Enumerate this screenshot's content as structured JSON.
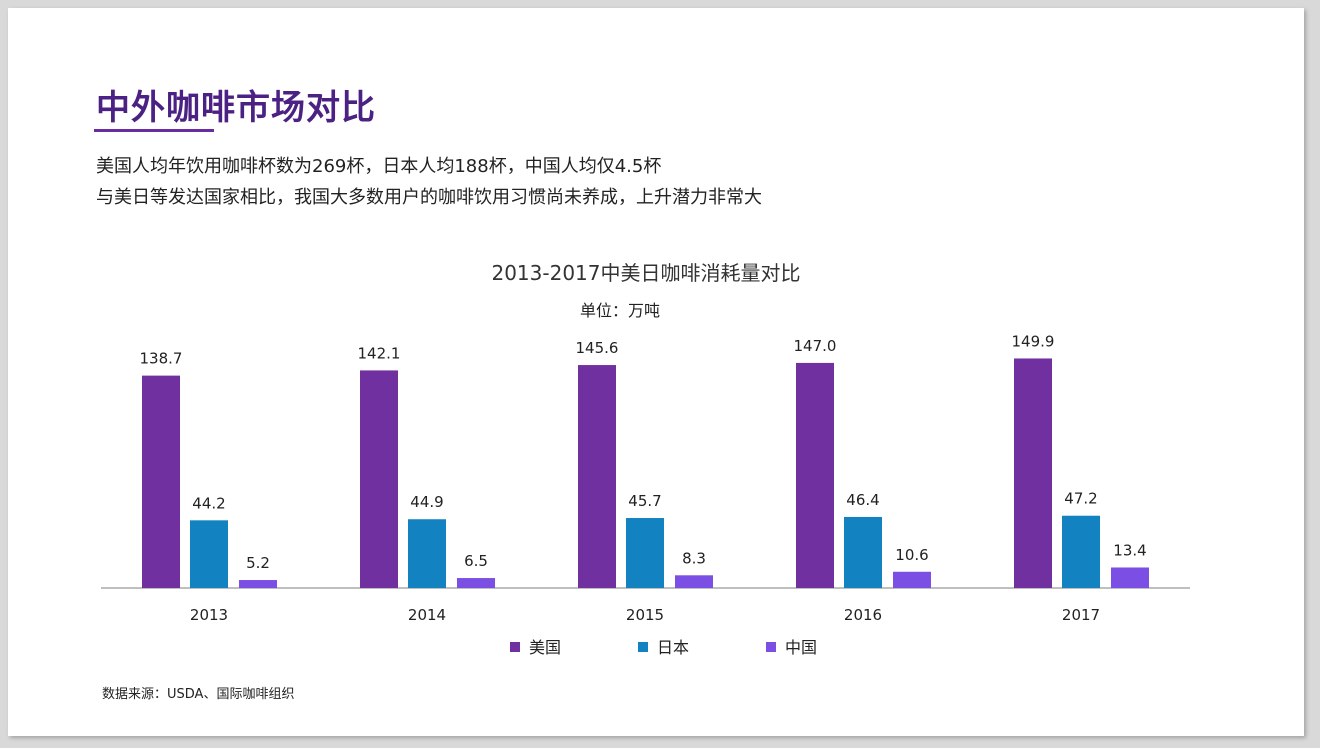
{
  "slide": {
    "title": "中外咖啡市场对比",
    "subtitle_lines": [
      "美国人均年饮用咖啡杯数为269杯，日本人均188杯，中国人均仅4.5杯",
      "与美日等发达国家相比，我国大多数用户的咖啡饮用习惯尚未养成，上升潜力非常大"
    ],
    "source_note": "数据来源：USDA、国际咖啡组织"
  },
  "chart_data": {
    "type": "bar",
    "title": "2013-2017中美日咖啡消耗量对比",
    "subtitle": "单位：万吨",
    "categories": [
      "2013",
      "2014",
      "2015",
      "2016",
      "2017"
    ],
    "series": [
      {
        "name": "美国",
        "color": "#7030a0",
        "values": [
          138.7,
          142.1,
          145.6,
          147.0,
          149.9
        ]
      },
      {
        "name": "日本",
        "color": "#1382c0",
        "values": [
          44.2,
          44.9,
          45.7,
          46.4,
          47.2
        ]
      },
      {
        "name": "中国",
        "color": "#7c4fe4",
        "values": [
          5.2,
          6.5,
          8.3,
          10.6,
          13.4
        ]
      }
    ],
    "ylim": [
      0,
      160
    ],
    "grid": false,
    "legend_position": "bottom",
    "data_labels": true
  }
}
